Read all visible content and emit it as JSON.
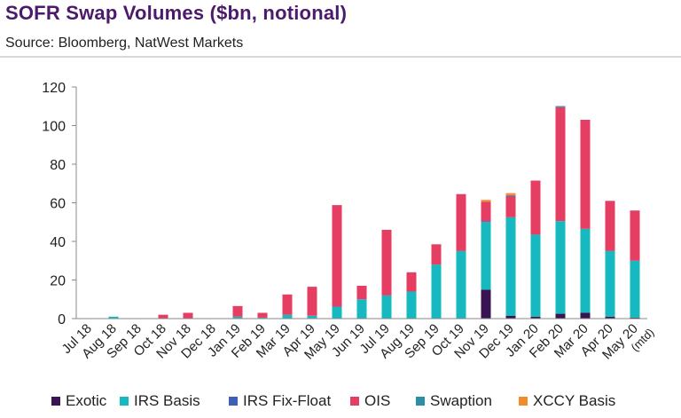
{
  "chart_data": {
    "type": "bar",
    "stacked": true,
    "title": "SOFR Swap Volumes ($bn, notional)",
    "source": "Source: Bloomberg, NatWest Markets",
    "ylim": [
      0,
      120
    ],
    "yticks": [
      0,
      20,
      40,
      60,
      80,
      100,
      120
    ],
    "categories": [
      "Jul 18",
      "Aug 18",
      "Sep 18",
      "Oct 18",
      "Nov 18",
      "Dec 18",
      "Jan 19",
      "Feb 19",
      "Mar 19",
      "Apr 19",
      "May 19",
      "Jun 19",
      "Jul 19",
      "Aug 19",
      "Sep 19",
      "Oct 19",
      "Nov 19",
      "Dec 19",
      "Jan 20",
      "Feb 20",
      "Mar 20",
      "Apr 20",
      "May 20 (mtd)"
    ],
    "series": [
      {
        "name": "Exotic",
        "color": "#3a1352",
        "values": [
          0,
          0,
          0,
          0,
          0,
          0,
          0,
          0,
          0,
          0,
          0,
          0,
          0,
          0,
          0,
          0,
          15,
          1.5,
          1,
          2.5,
          3,
          1,
          0.5
        ]
      },
      {
        "name": "IRS Basis",
        "color": "#17b9c0",
        "values": [
          0,
          1,
          0,
          0,
          0,
          0,
          1,
          0.5,
          2,
          1.5,
          6,
          10,
          12,
          14,
          28,
          35,
          35,
          51,
          42.5,
          48,
          43.5,
          34,
          29.5
        ]
      },
      {
        "name": "IRS Fix-Float",
        "color": "#3f5fb5",
        "values": [
          0,
          0,
          0,
          0,
          0,
          0,
          0,
          0,
          0,
          0,
          0.3,
          0,
          0,
          0,
          0,
          0,
          0.5,
          0,
          0,
          0,
          0,
          0,
          0
        ]
      },
      {
        "name": "OIS",
        "color": "#e63d63",
        "values": [
          0,
          0,
          0,
          2,
          3,
          0,
          5.5,
          2.5,
          10.5,
          15,
          52.5,
          7,
          34,
          10,
          10.5,
          29.5,
          10,
          11,
          28,
          59,
          56.5,
          26,
          26
        ]
      },
      {
        "name": "Swaption",
        "color": "#2a8fa3",
        "values": [
          0,
          0,
          0,
          0,
          0,
          0,
          0,
          0,
          0,
          0,
          0,
          0,
          0,
          0,
          0,
          0,
          0,
          0.5,
          0,
          0.6,
          0,
          0,
          0
        ]
      },
      {
        "name": "XCCY Basis",
        "color": "#f28a2e",
        "values": [
          0,
          0,
          0,
          0,
          0,
          0,
          0,
          0,
          0,
          0,
          0,
          0,
          0,
          0,
          0,
          0,
          1,
          1,
          0,
          0,
          0,
          0,
          0
        ]
      }
    ]
  }
}
